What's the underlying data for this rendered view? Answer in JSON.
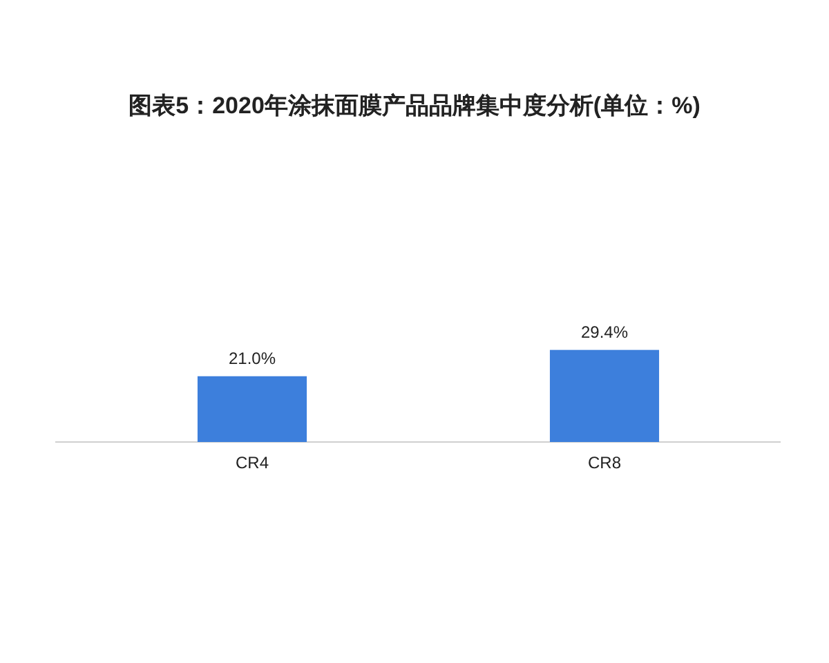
{
  "chart_data": {
    "type": "bar",
    "title": "图表5：2020年涂抹面膜产品品牌集中度分析(单位：%)",
    "categories": [
      "CR4",
      "CR8"
    ],
    "values": [
      21.0,
      29.4
    ],
    "value_labels": [
      "21.0%",
      "29.4%"
    ],
    "color": "#3d7fdc"
  }
}
